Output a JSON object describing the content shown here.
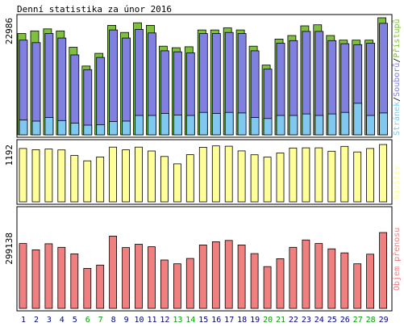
{
  "chart_data": {
    "type": "bar",
    "title": "Denní statistika za únor 2016",
    "categories": [
      "1",
      "2",
      "3",
      "4",
      "5",
      "6",
      "7",
      "8",
      "9",
      "10",
      "11",
      "12",
      "13",
      "14",
      "15",
      "16",
      "17",
      "18",
      "19",
      "20",
      "21",
      "22",
      "23",
      "24",
      "25",
      "26",
      "27",
      "28",
      "29"
    ],
    "weekend_days": [
      "6",
      "7",
      "13",
      "14",
      "20",
      "21",
      "27",
      "28"
    ],
    "panels": [
      {
        "id": "hits",
        "ymax_label": "22986",
        "ylim": [
          0,
          22986
        ],
        "legend": [
          "Přístupů",
          "Souborů",
          "Stránek"
        ],
        "series": [
          {
            "name": "Přístupů",
            "color": "#80c040",
            "values": [
              19900,
              20400,
              20800,
              20400,
              17200,
              13500,
              16000,
              21500,
              20100,
              22000,
              21500,
              17400,
              17100,
              17300,
              20600,
              20600,
              21000,
              20600,
              17400,
              13700,
              18800,
              19500,
              21400,
              21600,
              19500,
              18600,
              18600,
              18600,
              22986
            ]
          },
          {
            "name": "Souborů",
            "color": "#8080e0",
            "values": [
              18600,
              18100,
              19900,
              19000,
              15700,
              12800,
              15200,
              20600,
              19000,
              20700,
              20000,
              16500,
              16300,
              16100,
              19900,
              19900,
              20100,
              19900,
              16500,
              12900,
              18000,
              18500,
              20300,
              20300,
              18500,
              17900,
              17700,
              18000,
              21900
            ]
          },
          {
            "name": "Stránek",
            "color": "#80c8f0",
            "values": [
              2900,
              2700,
              3400,
              2800,
              2300,
              1900,
              2000,
              2600,
              2700,
              3800,
              3800,
              4200,
              3900,
              3800,
              4400,
              4200,
              4400,
              4300,
              3400,
              3200,
              3800,
              3800,
              4100,
              3800,
              4100,
              4400,
              6200,
              3800,
              4300
            ]
          }
        ]
      },
      {
        "id": "visits",
        "ymax_label": "1192",
        "ylim": [
          0,
          1192
        ],
        "legend": [
          "Návštěv"
        ],
        "series": [
          {
            "name": "Návštěv",
            "color": "#ffff99",
            "values": [
              1109,
              1084,
              1098,
              1079,
              964,
              853,
              934,
              1138,
              1081,
              1139,
              1057,
              944,
              791,
              980,
              1135,
              1164,
              1156,
              1060,
              979,
              930,
              1016,
              1119,
              1123,
              1123,
              1052,
              1153,
              1037,
              1109,
              1192
            ]
          }
        ]
      },
      {
        "id": "traffic",
        "ymax_label": "299138",
        "ylim": [
          0,
          299138
        ],
        "legend": [
          "Objem přenosu"
        ],
        "series": [
          {
            "name": "Objem přenosu",
            "color": "#f08080",
            "values": [
              256000,
              231000,
              255000,
              241000,
              215000,
              158000,
              171000,
              285000,
              240000,
              253000,
              243000,
              191000,
              176000,
              197000,
              250000,
              263000,
              268000,
              250000,
              216000,
              165000,
              196000,
              241000,
              270000,
              256000,
              235000,
              219000,
              176000,
              214000,
              299138
            ]
          }
        ]
      }
    ],
    "colors": {
      "accent_line": "#000000",
      "weekday_label": "#000080",
      "weekend_label": "#00a000",
      "legend_hits": "#80c040",
      "legend_files": "#8080e0",
      "legend_pages": "#80c8f0",
      "legend_visits": "#ffff99",
      "legend_traffic": "#f08080"
    }
  }
}
